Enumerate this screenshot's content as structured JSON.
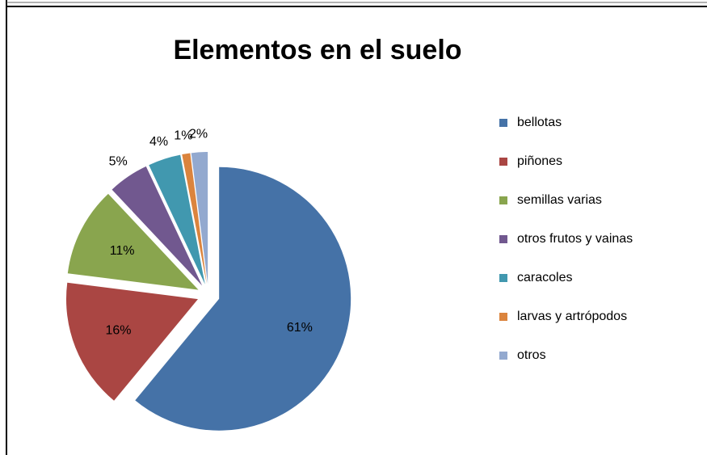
{
  "chart_data": {
    "type": "pie",
    "title": "Elementos en el suelo",
    "categories": [
      "bellotas",
      "piñones",
      "semillas varias",
      "otros frutos y vainas",
      "caracoles",
      "larvas y artrópodos",
      "otros"
    ],
    "values": [
      61,
      16,
      11,
      5,
      4,
      1,
      2
    ],
    "value_labels": [
      "61%",
      "16%",
      "11%",
      "5%",
      "4%",
      "1%",
      "2%"
    ],
    "colors": [
      "#4572a7",
      "#aa4643",
      "#89a54e",
      "#71588f",
      "#4198af",
      "#db843d",
      "#93a9cf"
    ],
    "legend": "right"
  }
}
